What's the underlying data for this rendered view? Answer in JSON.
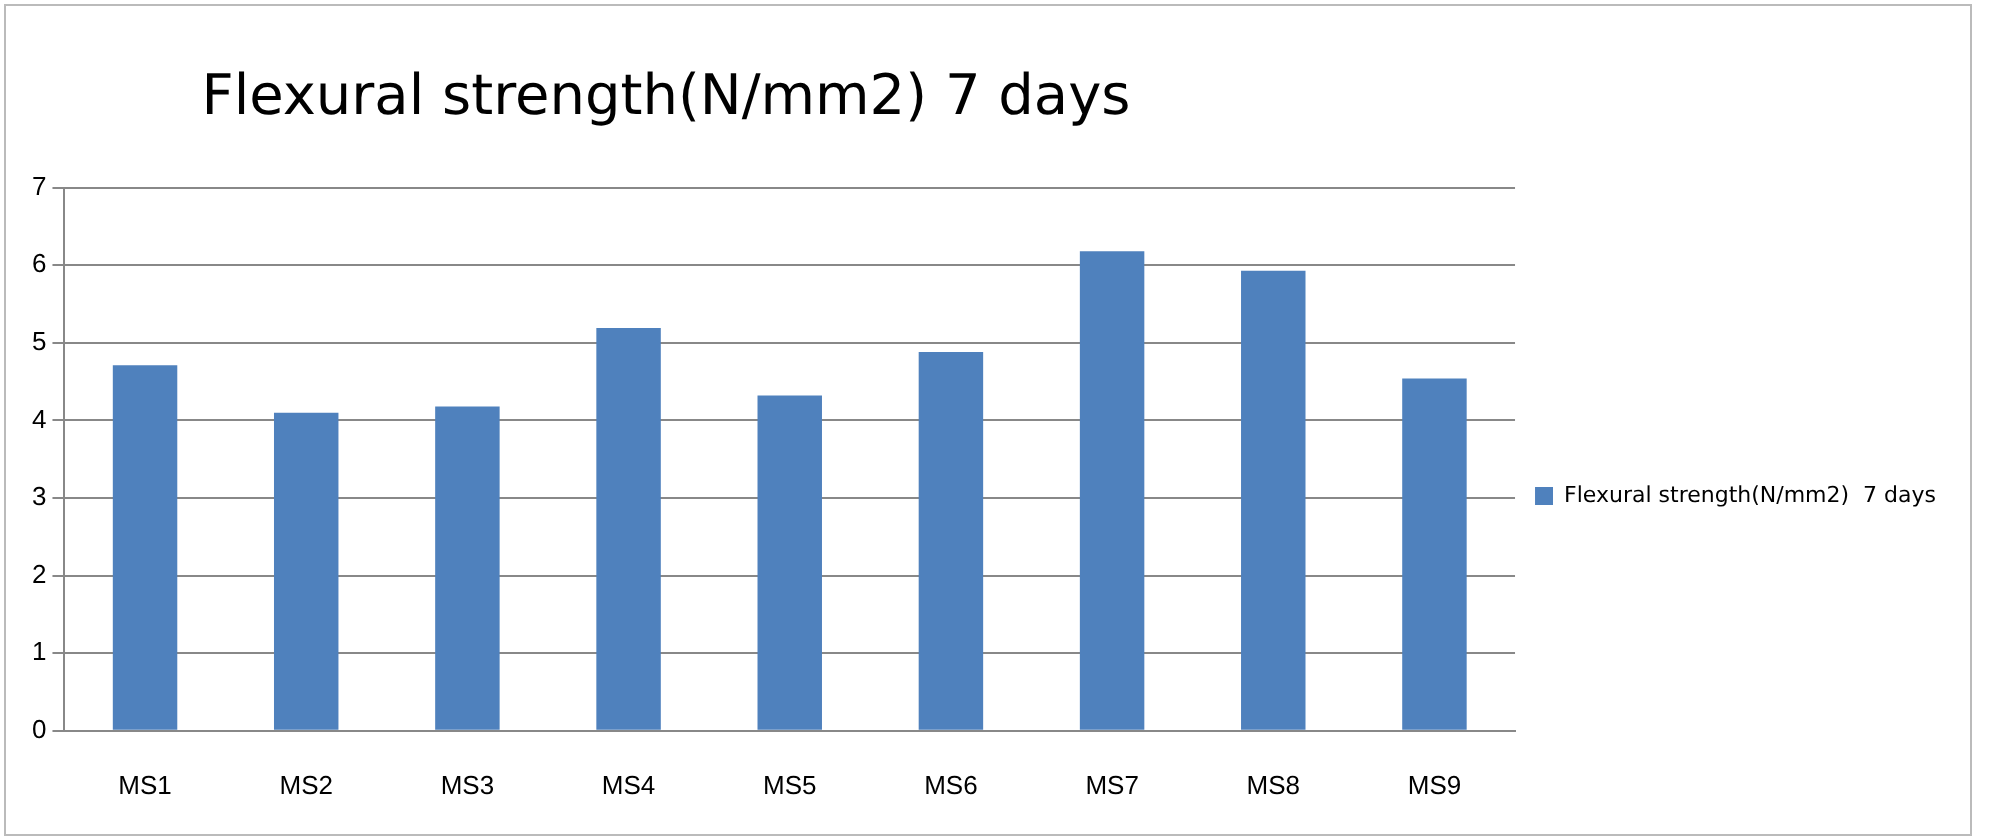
{
  "chart_data": {
    "type": "bar",
    "title": "Flexural strength(N/mm2) 7 days",
    "categories": [
      "MS1",
      "MS2",
      "MS3",
      "MS4",
      "MS5",
      "MS6",
      "MS7",
      "MS8",
      "MS9"
    ],
    "series": [
      {
        "name": "Flexural strength(N/mm2)  7 days",
        "color": "#4f81bd",
        "values": [
          4.71,
          4.1,
          4.18,
          5.19,
          4.32,
          4.88,
          6.18,
          5.93,
          4.54
        ]
      }
    ],
    "ylim": [
      0,
      7
    ],
    "yticks": [
      0,
      1,
      2,
      3,
      4,
      5,
      6,
      7
    ],
    "grid": "y",
    "legend": "right"
  }
}
